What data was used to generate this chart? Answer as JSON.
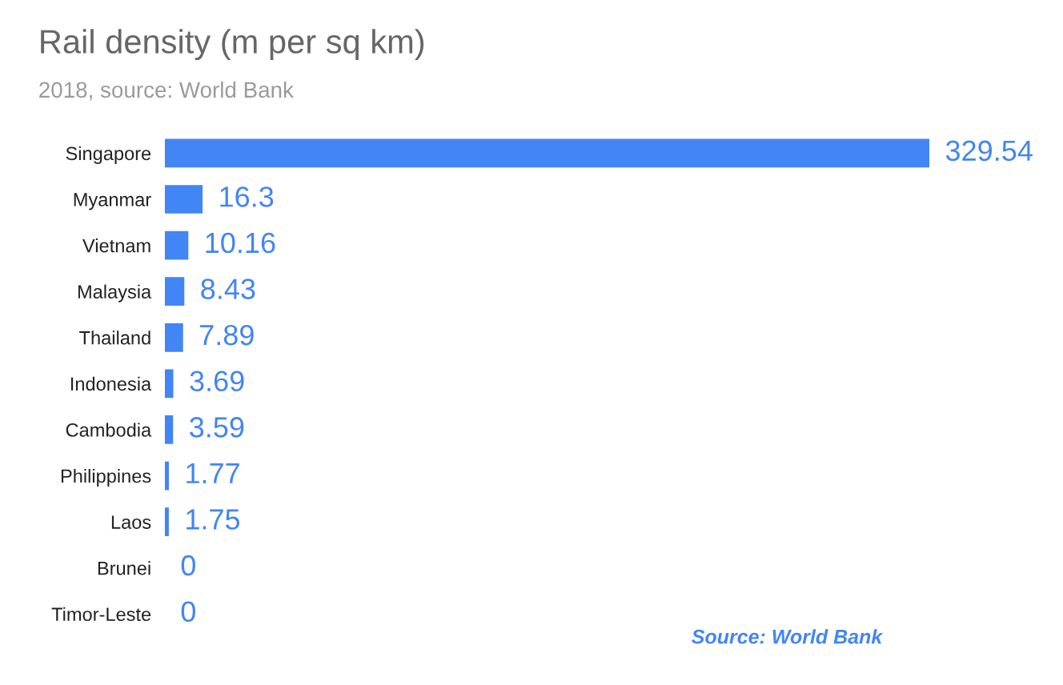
{
  "chart_data": {
    "type": "bar",
    "orientation": "horizontal",
    "title": "Rail density (m per sq km)",
    "subtitle": "2018, source: World Bank",
    "categories": [
      "Singapore",
      "Myanmar",
      "Vietnam",
      "Malaysia",
      "Thailand",
      "Indonesia",
      "Cambodia",
      "Philippines",
      "Laos",
      "Brunei",
      "Timor-Leste"
    ],
    "values": [
      329.54,
      16.3,
      10.16,
      8.43,
      7.89,
      3.69,
      3.59,
      1.77,
      1.75,
      0,
      0
    ],
    "color": "#4285f4",
    "data_labels": true,
    "grid": false,
    "annotations": [
      "Source: World Bank"
    ]
  }
}
